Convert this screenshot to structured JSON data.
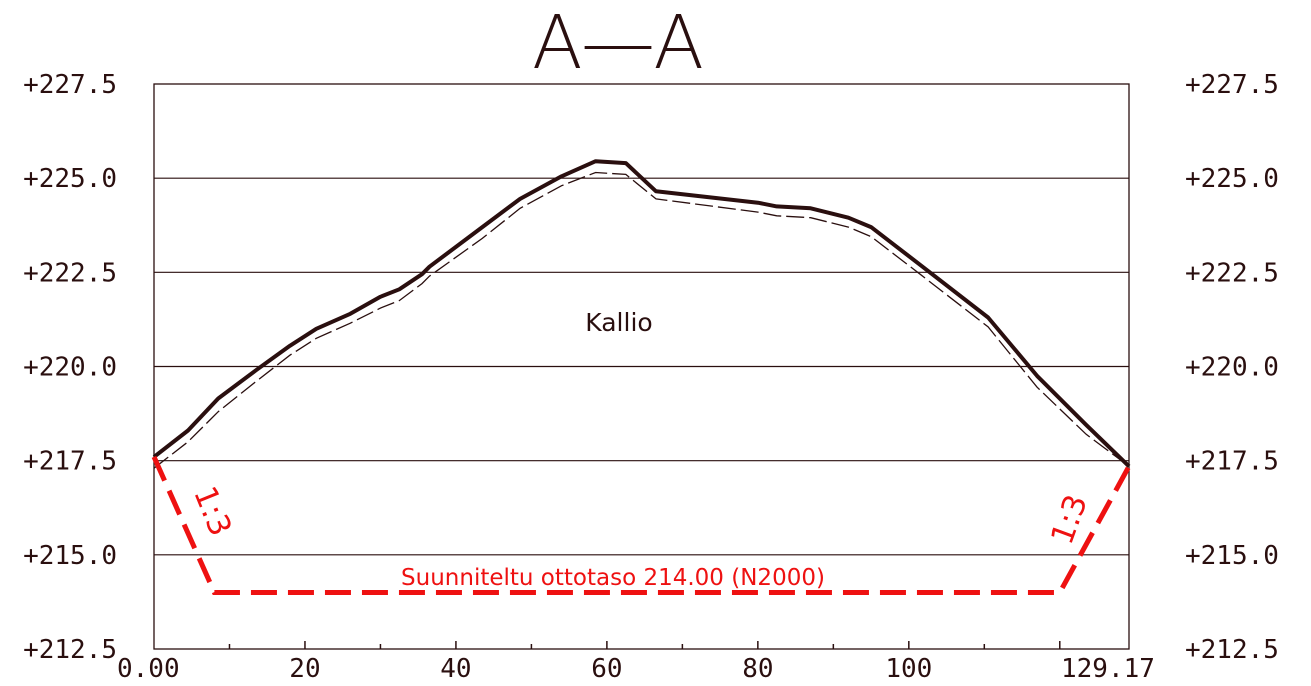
{
  "drawing": {
    "title": "A—A",
    "material_label": "Kallio",
    "design_label": "Suunniteltu ottotaso 214.00 (N2000)",
    "slope_label_left": "1:3",
    "slope_label_right": "1:3",
    "colors": {
      "line": "#2a0f0f",
      "design": "#ee1111",
      "grid": "#2a0f0f"
    }
  },
  "chart_data": {
    "type": "line",
    "title": "A—A",
    "xlim": [
      0,
      129.17
    ],
    "ylim": [
      212.5,
      227.5
    ],
    "x_ticks": [
      {
        "value": 0,
        "label": "0.00"
      },
      {
        "value": 20,
        "label": "20"
      },
      {
        "value": 40,
        "label": "40"
      },
      {
        "value": 60,
        "label": "60"
      },
      {
        "value": 80,
        "label": "80"
      },
      {
        "value": 100,
        "label": "100"
      },
      {
        "value": 129.17,
        "label": "129.17"
      }
    ],
    "y_ticks": [
      {
        "value": 212.5,
        "label": "+212.5"
      },
      {
        "value": 215.0,
        "label": "+215.0"
      },
      {
        "value": 217.5,
        "label": "+217.5"
      },
      {
        "value": 220.0,
        "label": "+220.0"
      },
      {
        "value": 222.5,
        "label": "+222.5"
      },
      {
        "value": 225.0,
        "label": "+225.0"
      },
      {
        "value": 227.5,
        "label": "+227.5"
      }
    ],
    "series": [
      {
        "style": "solid-thick",
        "points": [
          [
            0,
            217.6
          ],
          [
            4.5,
            218.3
          ],
          [
            8.5,
            219.15
          ],
          [
            13.5,
            219.9
          ],
          [
            18,
            220.55
          ],
          [
            21.5,
            221.0
          ],
          [
            26,
            221.4
          ],
          [
            30,
            221.85
          ],
          [
            32.5,
            222.05
          ],
          [
            35.5,
            222.45
          ],
          [
            36.5,
            222.65
          ],
          [
            43.5,
            223.7
          ],
          [
            48.5,
            224.45
          ],
          [
            54,
            225.05
          ],
          [
            58.5,
            225.45
          ],
          [
            62.5,
            225.4
          ],
          [
            66.5,
            224.65
          ],
          [
            80,
            224.35
          ],
          [
            82.5,
            224.25
          ],
          [
            87,
            224.2
          ],
          [
            92,
            223.95
          ],
          [
            95,
            223.7
          ],
          [
            101.5,
            222.7
          ],
          [
            110.5,
            221.3
          ],
          [
            117,
            219.75
          ],
          [
            123.5,
            218.45
          ],
          [
            129.17,
            217.35
          ]
        ]
      },
      {
        "style": "dashed-thin",
        "points": [
          [
            0,
            217.3
          ],
          [
            4.5,
            218.0
          ],
          [
            8.5,
            218.8
          ],
          [
            13.5,
            219.6
          ],
          [
            18,
            220.3
          ],
          [
            21.5,
            220.75
          ],
          [
            26,
            221.15
          ],
          [
            30,
            221.55
          ],
          [
            32.5,
            221.75
          ],
          [
            35.5,
            222.2
          ],
          [
            36.5,
            222.4
          ],
          [
            43.5,
            223.4
          ],
          [
            48.5,
            224.2
          ],
          [
            54,
            224.8
          ],
          [
            58.5,
            225.15
          ],
          [
            62.5,
            225.1
          ],
          [
            66.5,
            224.45
          ],
          [
            80,
            224.1
          ],
          [
            82.5,
            224.0
          ],
          [
            87,
            223.95
          ],
          [
            92,
            223.7
          ],
          [
            95,
            223.45
          ],
          [
            101.5,
            222.45
          ],
          [
            110.5,
            221.05
          ],
          [
            117,
            219.45
          ],
          [
            123.5,
            218.2
          ],
          [
            129.17,
            217.35
          ]
        ]
      },
      {
        "style": "design-dashed",
        "points": [
          [
            0,
            217.6
          ],
          [
            8,
            214.0
          ],
          [
            120,
            214.0
          ],
          [
            129.17,
            217.35
          ]
        ]
      }
    ]
  }
}
